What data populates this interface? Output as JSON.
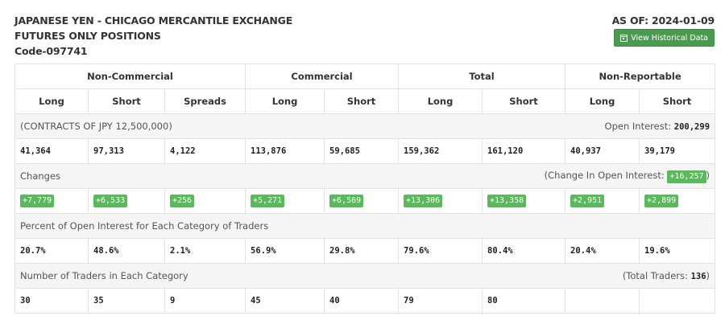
{
  "header": {
    "title_line1": "JAPANESE YEN - CHICAGO MERCANTILE EXCHANGE",
    "title_line2": "FUTURES ONLY POSITIONS",
    "code": "Code-097741",
    "as_of": "AS OF: 2024-01-09",
    "history_button": "View Historical Data",
    "history_icon": "calendar-icon"
  },
  "groups": {
    "non_commercial": "Non-Commercial",
    "commercial": "Commercial",
    "total": "Total",
    "non_reportable": "Non-Reportable"
  },
  "subheaders": [
    "Long",
    "Short",
    "Spreads",
    "Long",
    "Short",
    "Long",
    "Short",
    "Long",
    "Short"
  ],
  "contracts": {
    "label": "(CONTRACTS OF JPY 12,500,000)",
    "open_interest_label": "Open Interest:",
    "open_interest_value": "200,299",
    "values": [
      "41,364",
      "97,313",
      "4,122",
      "113,876",
      "59,685",
      "159,362",
      "161,120",
      "40,937",
      "39,179"
    ]
  },
  "changes": {
    "label": "Changes",
    "oi_prefix": "(Change In Open Interest:",
    "oi_value": "+16,257",
    "oi_suffix": ")",
    "values": [
      "+7,779",
      "+6,533",
      "+256",
      "+5,271",
      "+6,569",
      "+13,306",
      "+13,358",
      "+2,951",
      "+2,899"
    ]
  },
  "percent": {
    "label": "Percent of Open Interest for Each Category of Traders",
    "values": [
      "20.7%",
      "48.6%",
      "2.1%",
      "56.9%",
      "29.8%",
      "79.6%",
      "80.4%",
      "20.4%",
      "19.6%"
    ]
  },
  "traders": {
    "label": "Number of Traders in Each Category",
    "total_prefix": "(Total Traders:",
    "total_value": "136",
    "total_suffix": ")",
    "values": [
      "30",
      "35",
      "9",
      "45",
      "40",
      "79",
      "80",
      "",
      ""
    ]
  },
  "colors": {
    "button_green": "#4c9a52",
    "badge_green": "#5cb85c",
    "section_bg": "#f5f5f5",
    "border": "#e3e3e3"
  }
}
